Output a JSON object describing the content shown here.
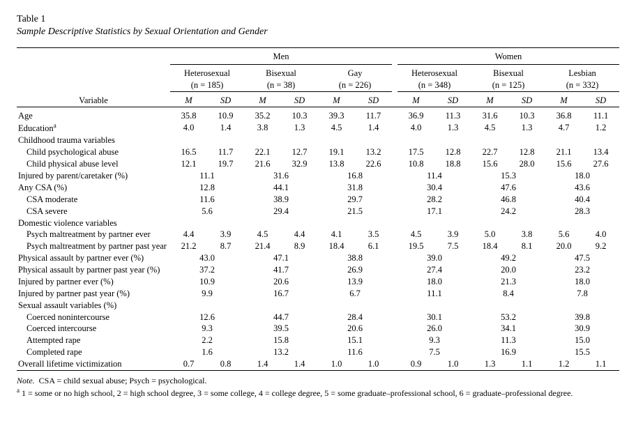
{
  "title": "Table 1",
  "subtitle": "Sample Descriptive Statistics by Sexual Orientation and Gender",
  "groups": {
    "gender": [
      "Men",
      "Women"
    ],
    "men": [
      {
        "label": "Heterosexual",
        "n": "(n = 185)"
      },
      {
        "label": "Bisexual",
        "n": "(n = 38)"
      },
      {
        "label": "Gay",
        "n": "(n = 226)"
      }
    ],
    "women": [
      {
        "label": "Heterosexual",
        "n": "(n = 348)"
      },
      {
        "label": "Bisexual",
        "n": "(n = 125)"
      },
      {
        "label": "Lesbian",
        "n": "(n = 332)"
      }
    ]
  },
  "colheads": {
    "variable": "Variable",
    "m": "M",
    "sd": "SD"
  },
  "rows": [
    {
      "type": "ms",
      "label": "Age",
      "m": [
        "35.8",
        "35.2",
        "39.3",
        "36.9",
        "31.6",
        "36.8"
      ],
      "sd": [
        "10.9",
        "10.3",
        "11.7",
        "11.3",
        "10.3",
        "11.1"
      ]
    },
    {
      "type": "ms",
      "label": "Education",
      "sup": "a",
      "m": [
        "4.0",
        "3.8",
        "4.5",
        "4.0",
        "4.5",
        "4.7"
      ],
      "sd": [
        "1.4",
        "1.3",
        "1.4",
        "1.3",
        "1.3",
        "1.2"
      ]
    },
    {
      "type": "section",
      "label": "Childhood trauma variables"
    },
    {
      "type": "ms",
      "indent": 1,
      "label": "Child psychological abuse",
      "m": [
        "16.5",
        "22.1",
        "19.1",
        "17.5",
        "22.7",
        "21.1"
      ],
      "sd": [
        "11.7",
        "12.7",
        "13.2",
        "12.8",
        "12.8",
        "13.4"
      ]
    },
    {
      "type": "ms",
      "indent": 1,
      "label": "Child physical abuse level",
      "m": [
        "12.1",
        "21.6",
        "13.8",
        "10.8",
        "15.6",
        "15.6"
      ],
      "sd": [
        "19.7",
        "32.9",
        "22.6",
        "18.8",
        "28.0",
        "27.6"
      ]
    },
    {
      "type": "span",
      "label": "Injured by parent/caretaker (%)",
      "v": [
        "11.1",
        "31.6",
        "16.8",
        "11.4",
        "15.3",
        "18.0"
      ]
    },
    {
      "type": "span",
      "label": "Any CSA (%)",
      "v": [
        "12.8",
        "44.1",
        "31.8",
        "30.4",
        "47.6",
        "43.6"
      ]
    },
    {
      "type": "span",
      "indent": 1,
      "label": "CSA moderate",
      "v": [
        "11.6",
        "38.9",
        "29.7",
        "28.2",
        "46.8",
        "40.4"
      ]
    },
    {
      "type": "span",
      "indent": 1,
      "label": "CSA severe",
      "v": [
        "5.6",
        "29.4",
        "21.5",
        "17.1",
        "24.2",
        "28.3"
      ]
    },
    {
      "type": "section",
      "label": "Domestic violence variables"
    },
    {
      "type": "ms",
      "indent": 1,
      "label": "Psych maltreatment by partner ever",
      "m": [
        "4.4",
        "4.5",
        "4.1",
        "4.5",
        "5.0",
        "5.6"
      ],
      "sd": [
        "3.9",
        "4.4",
        "3.5",
        "3.9",
        "3.8",
        "4.0"
      ]
    },
    {
      "type": "ms",
      "indent": 1,
      "label": "Psych maltreatment by partner past year",
      "m": [
        "21.2",
        "21.4",
        "18.4",
        "19.5",
        "18.4",
        "20.0"
      ],
      "sd": [
        "8.7",
        "8.9",
        "6.1",
        "7.5",
        "8.1",
        "9.2"
      ]
    },
    {
      "type": "span",
      "label": "Physical assault by partner ever (%)",
      "v": [
        "43.0",
        "47.1",
        "38.8",
        "39.0",
        "49.2",
        "47.5"
      ]
    },
    {
      "type": "span",
      "label": "Physical assault by partner past year (%)",
      "v": [
        "37.2",
        "41.7",
        "26.9",
        "27.4",
        "20.0",
        "23.2"
      ]
    },
    {
      "type": "span",
      "label": "Injured by partner ever (%)",
      "v": [
        "10.9",
        "20.6",
        "13.9",
        "18.0",
        "21.3",
        "18.0"
      ]
    },
    {
      "type": "span",
      "label": "Injured by partner past year (%)",
      "v": [
        "9.9",
        "16.7",
        "6.7",
        "11.1",
        "8.4",
        "7.8"
      ]
    },
    {
      "type": "section",
      "label": "Sexual assault variables (%)"
    },
    {
      "type": "span",
      "indent": 1,
      "label": "Coerced nonintercourse",
      "v": [
        "12.6",
        "44.7",
        "28.4",
        "30.1",
        "53.2",
        "39.8"
      ]
    },
    {
      "type": "span",
      "indent": 1,
      "label": "Coerced intercourse",
      "v": [
        "9.3",
        "39.5",
        "20.6",
        "26.0",
        "34.1",
        "30.9"
      ]
    },
    {
      "type": "span",
      "indent": 1,
      "label": "Attempted rape",
      "v": [
        "2.2",
        "15.8",
        "15.1",
        "9.3",
        "11.3",
        "15.0"
      ]
    },
    {
      "type": "span",
      "indent": 1,
      "label": "Completed rape",
      "v": [
        "1.6",
        "13.2",
        "11.6",
        "7.5",
        "16.9",
        "15.5"
      ]
    },
    {
      "type": "ms",
      "label": "Overall lifetime victimization",
      "m": [
        "0.7",
        "1.4",
        "1.0",
        "0.9",
        "1.3",
        "1.2"
      ],
      "sd": [
        "0.8",
        "1.4",
        "1.0",
        "1.0",
        "1.1",
        "1.1"
      ]
    }
  ],
  "note": {
    "lead": "Note.",
    "body": "CSA = child sexual abuse; Psych = psychological.",
    "foot_a_label": "a",
    "foot_a": "1 = some or no high school, 2 = high school degree, 3 = some college, 4 = college degree, 5 = some graduate–professional school, 6 = graduate–professional degree."
  }
}
